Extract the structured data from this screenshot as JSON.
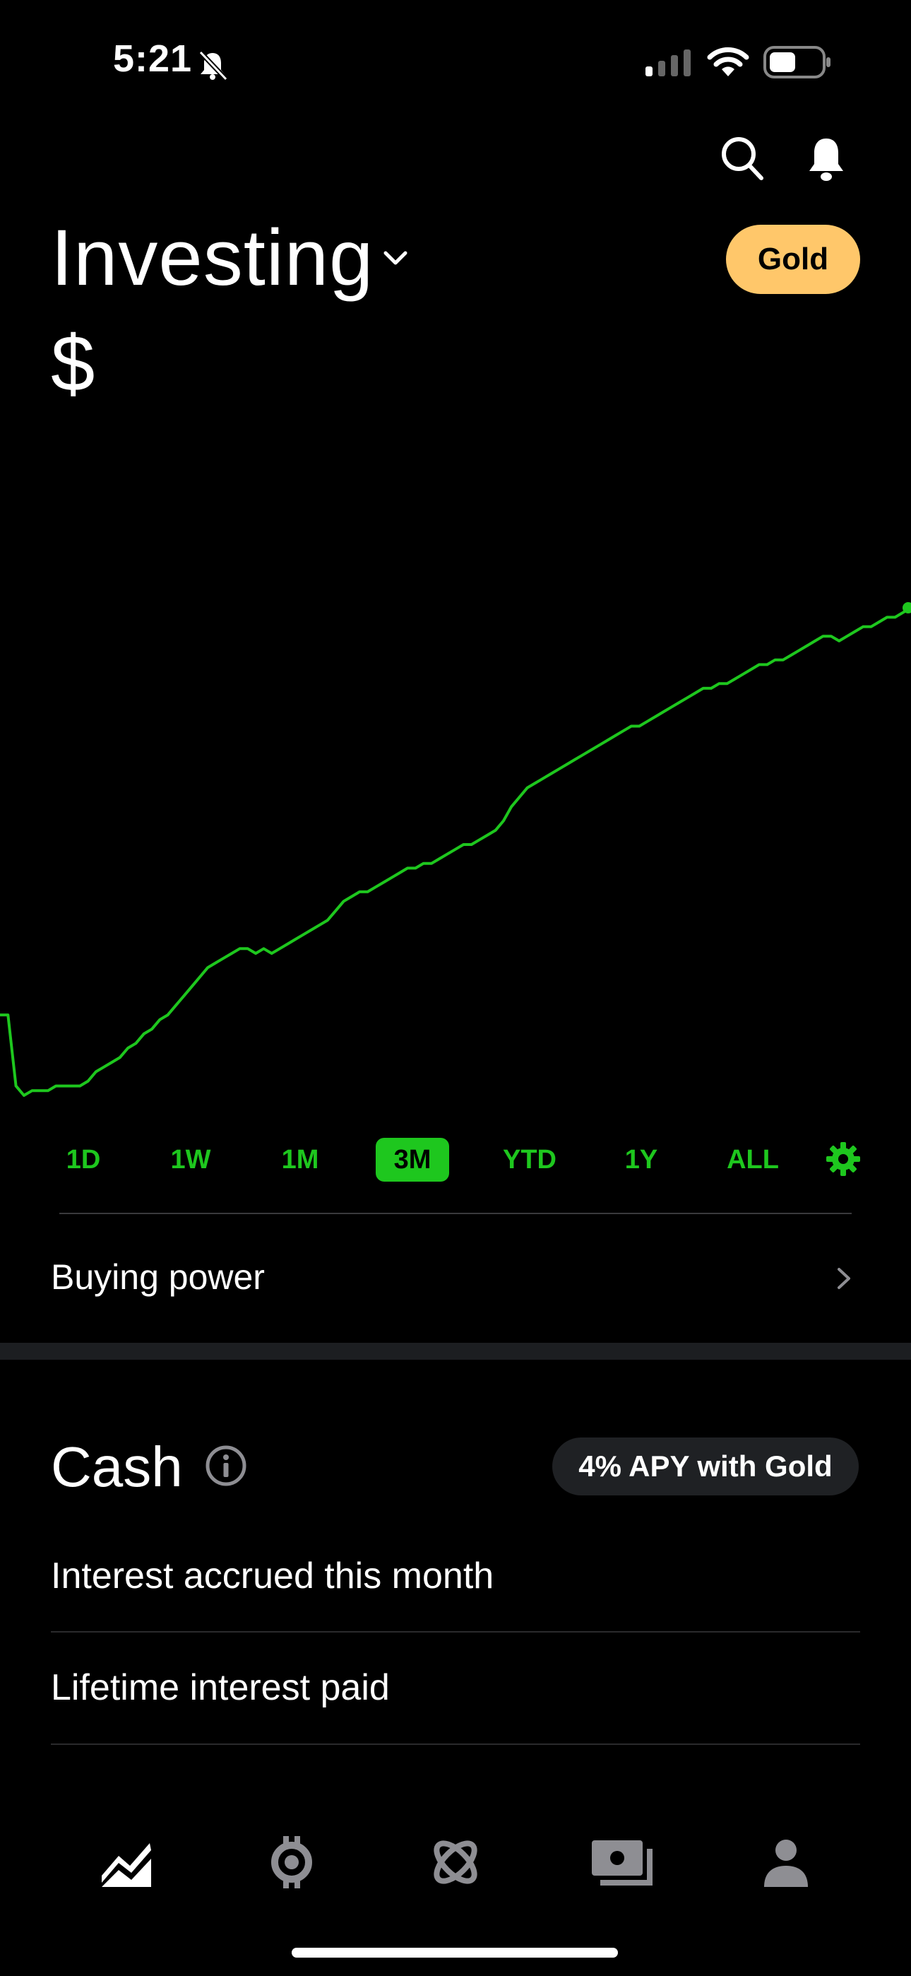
{
  "status_bar": {
    "time": "5:21"
  },
  "header": {
    "title": "Investing",
    "gold_button": "Gold",
    "balance": "$"
  },
  "chart_data": {
    "type": "line",
    "color": "#1ec71e",
    "y": [
      44,
      44,
      29,
      27,
      28,
      28,
      28,
      29,
      29,
      29,
      29,
      30,
      32,
      33,
      34,
      35,
      37,
      38,
      40,
      41,
      43,
      44,
      46,
      48,
      50,
      52,
      54,
      55,
      56,
      57,
      58,
      58,
      57,
      58,
      57,
      58,
      59,
      60,
      61,
      62,
      63,
      64,
      66,
      68,
      69,
      70,
      70,
      71,
      72,
      73,
      74,
      75,
      75,
      76,
      76,
      77,
      78,
      79,
      80,
      80,
      81,
      82,
      83,
      85,
      88,
      90,
      92,
      93,
      94,
      95,
      96,
      97,
      98,
      99,
      100,
      101,
      102,
      103,
      104,
      105,
      105,
      106,
      107,
      108,
      109,
      110,
      111,
      112,
      113,
      113,
      114,
      114,
      115,
      116,
      117,
      118,
      118,
      119,
      119,
      120,
      121,
      122,
      123,
      124,
      124,
      123,
      124,
      125,
      126,
      126,
      127,
      128,
      128,
      129,
      130
    ]
  },
  "ranges": [
    "1D",
    "1W",
    "1M",
    "3M",
    "YTD",
    "1Y",
    "ALL"
  ],
  "active_range": "3M",
  "buying_power": {
    "label": "Buying power"
  },
  "cash": {
    "title": "Cash",
    "apy_badge": "4% APY with Gold",
    "rows": [
      {
        "label": "Interest accrued this month"
      },
      {
        "label": "Lifetime interest paid"
      }
    ]
  },
  "tabbar": {
    "icons": [
      "chart-icon",
      "crypto-icon",
      "discover-icon",
      "cash-icon",
      "account-icon"
    ]
  },
  "colors": {
    "accent": "#1ec71e",
    "gold": "#ffc76a",
    "badge_bg": "#1f2124"
  }
}
